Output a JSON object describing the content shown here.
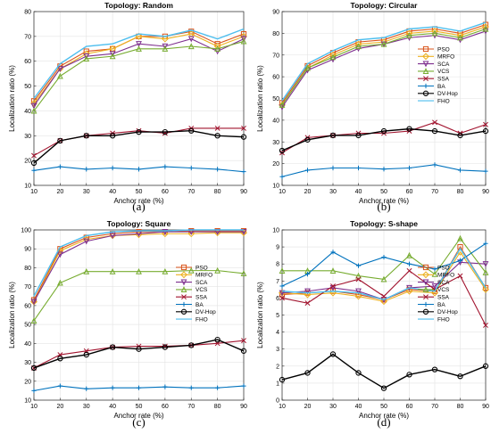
{
  "chart_data": [
    {
      "type": "line",
      "title": "Topology: Random",
      "panel_label": "(a)",
      "xlabel": "Anchor rate (%)",
      "ylabel": "Localization ratio (%)",
      "x": [
        10,
        20,
        30,
        40,
        50,
        60,
        70,
        80,
        90
      ],
      "xlim": [
        10,
        90
      ],
      "ylim": [
        10,
        80
      ],
      "xticks": [
        "10",
        "20",
        "30",
        "40",
        "50",
        "60",
        "70",
        "80",
        "90"
      ],
      "yticks": [
        "10",
        "20",
        "30",
        "40",
        "50",
        "60",
        "70",
        "80"
      ],
      "grid": true,
      "legend_position": "none",
      "series": [
        {
          "name": "PSO",
          "color": "#d95319",
          "marker": "square",
          "values": [
            44,
            58,
            64,
            65,
            70,
            70,
            72,
            67,
            71
          ]
        },
        {
          "name": "MRFO",
          "color": "#edb120",
          "marker": "diamond",
          "values": [
            43,
            57,
            63,
            65,
            70,
            69,
            71,
            66,
            70
          ]
        },
        {
          "name": "SCA",
          "color": "#7e2f8e",
          "marker": "tri-down",
          "values": [
            42,
            57,
            62,
            63,
            67,
            66,
            69,
            64,
            69
          ]
        },
        {
          "name": "VCS",
          "color": "#77ac30",
          "marker": "tri-up",
          "values": [
            40,
            54,
            61,
            62,
            65,
            65,
            66,
            65,
            68
          ]
        },
        {
          "name": "SSA",
          "color": "#a2142f",
          "marker": "x",
          "values": [
            22,
            28,
            30,
            31,
            32,
            31,
            33,
            33,
            33
          ]
        },
        {
          "name": "BA",
          "color": "#0072bd",
          "marker": "plus",
          "values": [
            16,
            17.5,
            16.5,
            17,
            16.5,
            17.5,
            17,
            16.5,
            15.5
          ]
        },
        {
          "name": "DV-Hop",
          "color": "#000000",
          "marker": "circle",
          "values": [
            19,
            28,
            30,
            30,
            31.5,
            31.5,
            32,
            30,
            29.5
          ]
        },
        {
          "name": "FHO",
          "color": "#4dbeee",
          "marker": "none",
          "values": [
            45,
            59,
            66,
            67,
            71,
            70,
            72.5,
            69,
            73
          ]
        }
      ]
    },
    {
      "type": "line",
      "title": "Topology: Circular",
      "panel_label": "(b)",
      "xlabel": "Anchor rate (%)",
      "ylabel": "Localization ratio (%)",
      "x": [
        10,
        20,
        30,
        40,
        50,
        60,
        70,
        80,
        90
      ],
      "xlim": [
        10,
        90
      ],
      "ylim": [
        10,
        90
      ],
      "xticks": [
        "10",
        "20",
        "30",
        "40",
        "50",
        "60",
        "70",
        "80",
        "90"
      ],
      "yticks": [
        "10",
        "20",
        "30",
        "40",
        "50",
        "60",
        "70",
        "80",
        "90"
      ],
      "grid": true,
      "legend_position": "right",
      "series": [
        {
          "name": "PSO",
          "color": "#d95319",
          "marker": "square",
          "values": [
            48,
            65,
            71,
            76,
            77,
            81,
            82,
            80,
            84
          ]
        },
        {
          "name": "MRFO",
          "color": "#edb120",
          "marker": "diamond",
          "values": [
            47,
            64,
            70,
            75,
            76,
            80,
            81,
            79,
            83
          ]
        },
        {
          "name": "SCA",
          "color": "#7e2f8e",
          "marker": "tri-down",
          "values": [
            46,
            63,
            68,
            73,
            75,
            78,
            79,
            77,
            81
          ]
        },
        {
          "name": "VCS",
          "color": "#77ac30",
          "marker": "tri-up",
          "values": [
            47,
            64,
            69,
            74,
            75,
            79,
            80,
            78,
            82
          ]
        },
        {
          "name": "SSA",
          "color": "#a2142f",
          "marker": "x",
          "values": [
            25,
            32,
            33,
            34,
            34,
            35,
            39,
            34,
            38
          ]
        },
        {
          "name": "BA",
          "color": "#0072bd",
          "marker": "plus",
          "values": [
            14,
            17,
            18,
            18,
            17.5,
            18,
            19.5,
            17,
            16.5
          ]
        },
        {
          "name": "DV-Hop",
          "color": "#000000",
          "marker": "circle",
          "values": [
            26,
            31,
            33,
            33,
            35,
            36,
            35,
            33,
            35
          ]
        },
        {
          "name": "FHO",
          "color": "#4dbeee",
          "marker": "none",
          "values": [
            49,
            66,
            72,
            77,
            78,
            82,
            83,
            81,
            85
          ]
        }
      ]
    },
    {
      "type": "line",
      "title": "Topology: Square",
      "panel_label": "(c)",
      "xlabel": "Anchor rate (%)",
      "ylabel": "Localization ratio (%)",
      "x": [
        10,
        20,
        30,
        40,
        50,
        60,
        70,
        80,
        90
      ],
      "xlim": [
        10,
        90
      ],
      "ylim": [
        10,
        100
      ],
      "xticks": [
        "10",
        "20",
        "30",
        "40",
        "50",
        "60",
        "70",
        "80",
        "90"
      ],
      "yticks": [
        "10",
        "20",
        "30",
        "40",
        "50",
        "60",
        "70",
        "80",
        "90",
        "100"
      ],
      "grid": true,
      "legend_position": "right",
      "series": [
        {
          "name": "PSO",
          "color": "#d95319",
          "marker": "square",
          "values": [
            63,
            90,
            96,
            98,
            99,
            99,
            99.5,
            99.5,
            99.5
          ]
        },
        {
          "name": "MRFO",
          "color": "#edb120",
          "marker": "diamond",
          "values": [
            62,
            89,
            95,
            97,
            97.5,
            98,
            98,
            98.5,
            98.5
          ]
        },
        {
          "name": "SCA",
          "color": "#7e2f8e",
          "marker": "tri-down",
          "values": [
            62,
            87,
            94,
            97,
            98,
            99,
            99,
            99,
            99
          ]
        },
        {
          "name": "VCS",
          "color": "#77ac30",
          "marker": "tri-up",
          "values": [
            52,
            72,
            78,
            78,
            78,
            78,
            78.5,
            78.5,
            77
          ]
        },
        {
          "name": "SSA",
          "color": "#a2142f",
          "marker": "x",
          "values": [
            27,
            34,
            36,
            38,
            38.5,
            38.5,
            39,
            40,
            41.5
          ]
        },
        {
          "name": "BA",
          "color": "#0072bd",
          "marker": "plus",
          "values": [
            15,
            17.5,
            16,
            16.5,
            16.5,
            17,
            16.5,
            16.5,
            17.5
          ]
        },
        {
          "name": "DV-Hop",
          "color": "#000000",
          "marker": "circle",
          "values": [
            27,
            32,
            34,
            38,
            37,
            38,
            39,
            42,
            36
          ]
        },
        {
          "name": "FHO",
          "color": "#4dbeee",
          "marker": "none",
          "values": [
            65,
            91,
            97,
            99,
            99.5,
            99.5,
            100,
            100,
            100
          ]
        }
      ]
    },
    {
      "type": "line",
      "title": "Topology: S-shape",
      "panel_label": "(d)",
      "xlabel": "Anchor rate (%)",
      "ylabel": "Localization ratio (%)",
      "x": [
        10,
        20,
        30,
        40,
        50,
        60,
        70,
        80,
        90
      ],
      "xlim": [
        10,
        90
      ],
      "ylim": [
        0,
        10
      ],
      "xticks": [
        "10",
        "20",
        "30",
        "40",
        "50",
        "60",
        "70",
        "80",
        "90"
      ],
      "yticks": [
        "0",
        "1",
        "2",
        "3",
        "4",
        "5",
        "6",
        "7",
        "8",
        "9",
        "10"
      ],
      "grid": true,
      "legend_position": "right",
      "series": [
        {
          "name": "PSO",
          "color": "#d95319",
          "marker": "square",
          "values": [
            6.2,
            6.3,
            6.4,
            6.2,
            5.9,
            6.5,
            6.4,
            9.0,
            6.6
          ]
        },
        {
          "name": "MRFO",
          "color": "#edb120",
          "marker": "diamond",
          "values": [
            6.3,
            6.2,
            6.3,
            6.1,
            5.8,
            6.4,
            6.3,
            8.7,
            6.5
          ]
        },
        {
          "name": "SCA",
          "color": "#7e2f8e",
          "marker": "tri-down",
          "values": [
            6.3,
            6.4,
            6.6,
            6.4,
            5.9,
            6.6,
            6.7,
            8.1,
            8.0
          ]
        },
        {
          "name": "VCS",
          "color": "#77ac30",
          "marker": "tri-up",
          "values": [
            7.6,
            7.6,
            7.6,
            7.3,
            7.1,
            8.5,
            7.4,
            9.5,
            7.5
          ]
        },
        {
          "name": "SSA",
          "color": "#a2142f",
          "marker": "x",
          "values": [
            6.0,
            5.7,
            6.7,
            7.1,
            6.1,
            7.6,
            6.5,
            7.3,
            4.4
          ]
        },
        {
          "name": "BA",
          "color": "#0072bd",
          "marker": "plus",
          "values": [
            6.7,
            7.4,
            8.7,
            7.9,
            8.4,
            8.0,
            7.7,
            8.2,
            9.2
          ]
        },
        {
          "name": "DV-Hop",
          "color": "#000000",
          "marker": "circle",
          "values": [
            1.2,
            1.6,
            2.7,
            1.6,
            0.7,
            1.5,
            1.8,
            1.4,
            2.0
          ]
        },
        {
          "name": "FHO",
          "color": "#4dbeee",
          "marker": "none",
          "values": [
            6.4,
            6.3,
            6.4,
            6.3,
            5.9,
            6.6,
            6.4,
            8.9,
            6.6
          ]
        }
      ]
    }
  ]
}
